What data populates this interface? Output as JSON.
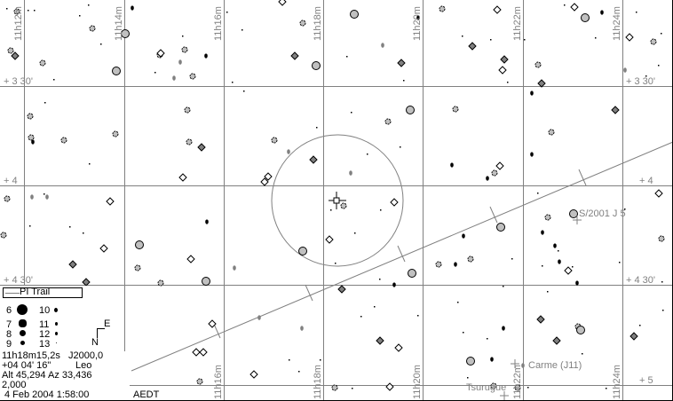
{
  "ra_labels": {
    "top": [
      "11h12m",
      "11h14m",
      "11h16m",
      "11h18m",
      "11h20m",
      "11h22m",
      "11h24m"
    ],
    "bottom": [
      "11h16m",
      "11h18m",
      "11h20m",
      "11h22m",
      "11h24m"
    ]
  },
  "dec_labels": {
    "left": [
      "+ 3 30'",
      "+ 4",
      "+ 4 30'"
    ],
    "right": [
      "+ 3 30'",
      "+ 4",
      "+ 4 30'",
      "+ 5"
    ]
  },
  "objects": {
    "moon1": "S/2001 J 5",
    "moon2": "Carme (J11)",
    "moon3": "Tsurugue"
  },
  "legend": {
    "trail_label": "PI Trail",
    "magnitudes": [
      "6",
      "7",
      "8",
      "9",
      "10",
      "11",
      "12",
      "13"
    ],
    "compass": {
      "north": "N",
      "east": "E"
    }
  },
  "info": {
    "ra": "11h18m15,2s",
    "epoch": "J2000,0",
    "dec": "+04 04' 16\"",
    "constellation": "Leo",
    "altaz": "Alt 45,294  Az 33,436",
    "fov": "2,000",
    "datetime": "4 Feb 2004  1:58:00",
    "timezone": "AEDT"
  },
  "colors": {
    "grid": "#808080",
    "star_gray": "#c0c0c0",
    "star_dark": "#808080",
    "ink": "#000000"
  }
}
